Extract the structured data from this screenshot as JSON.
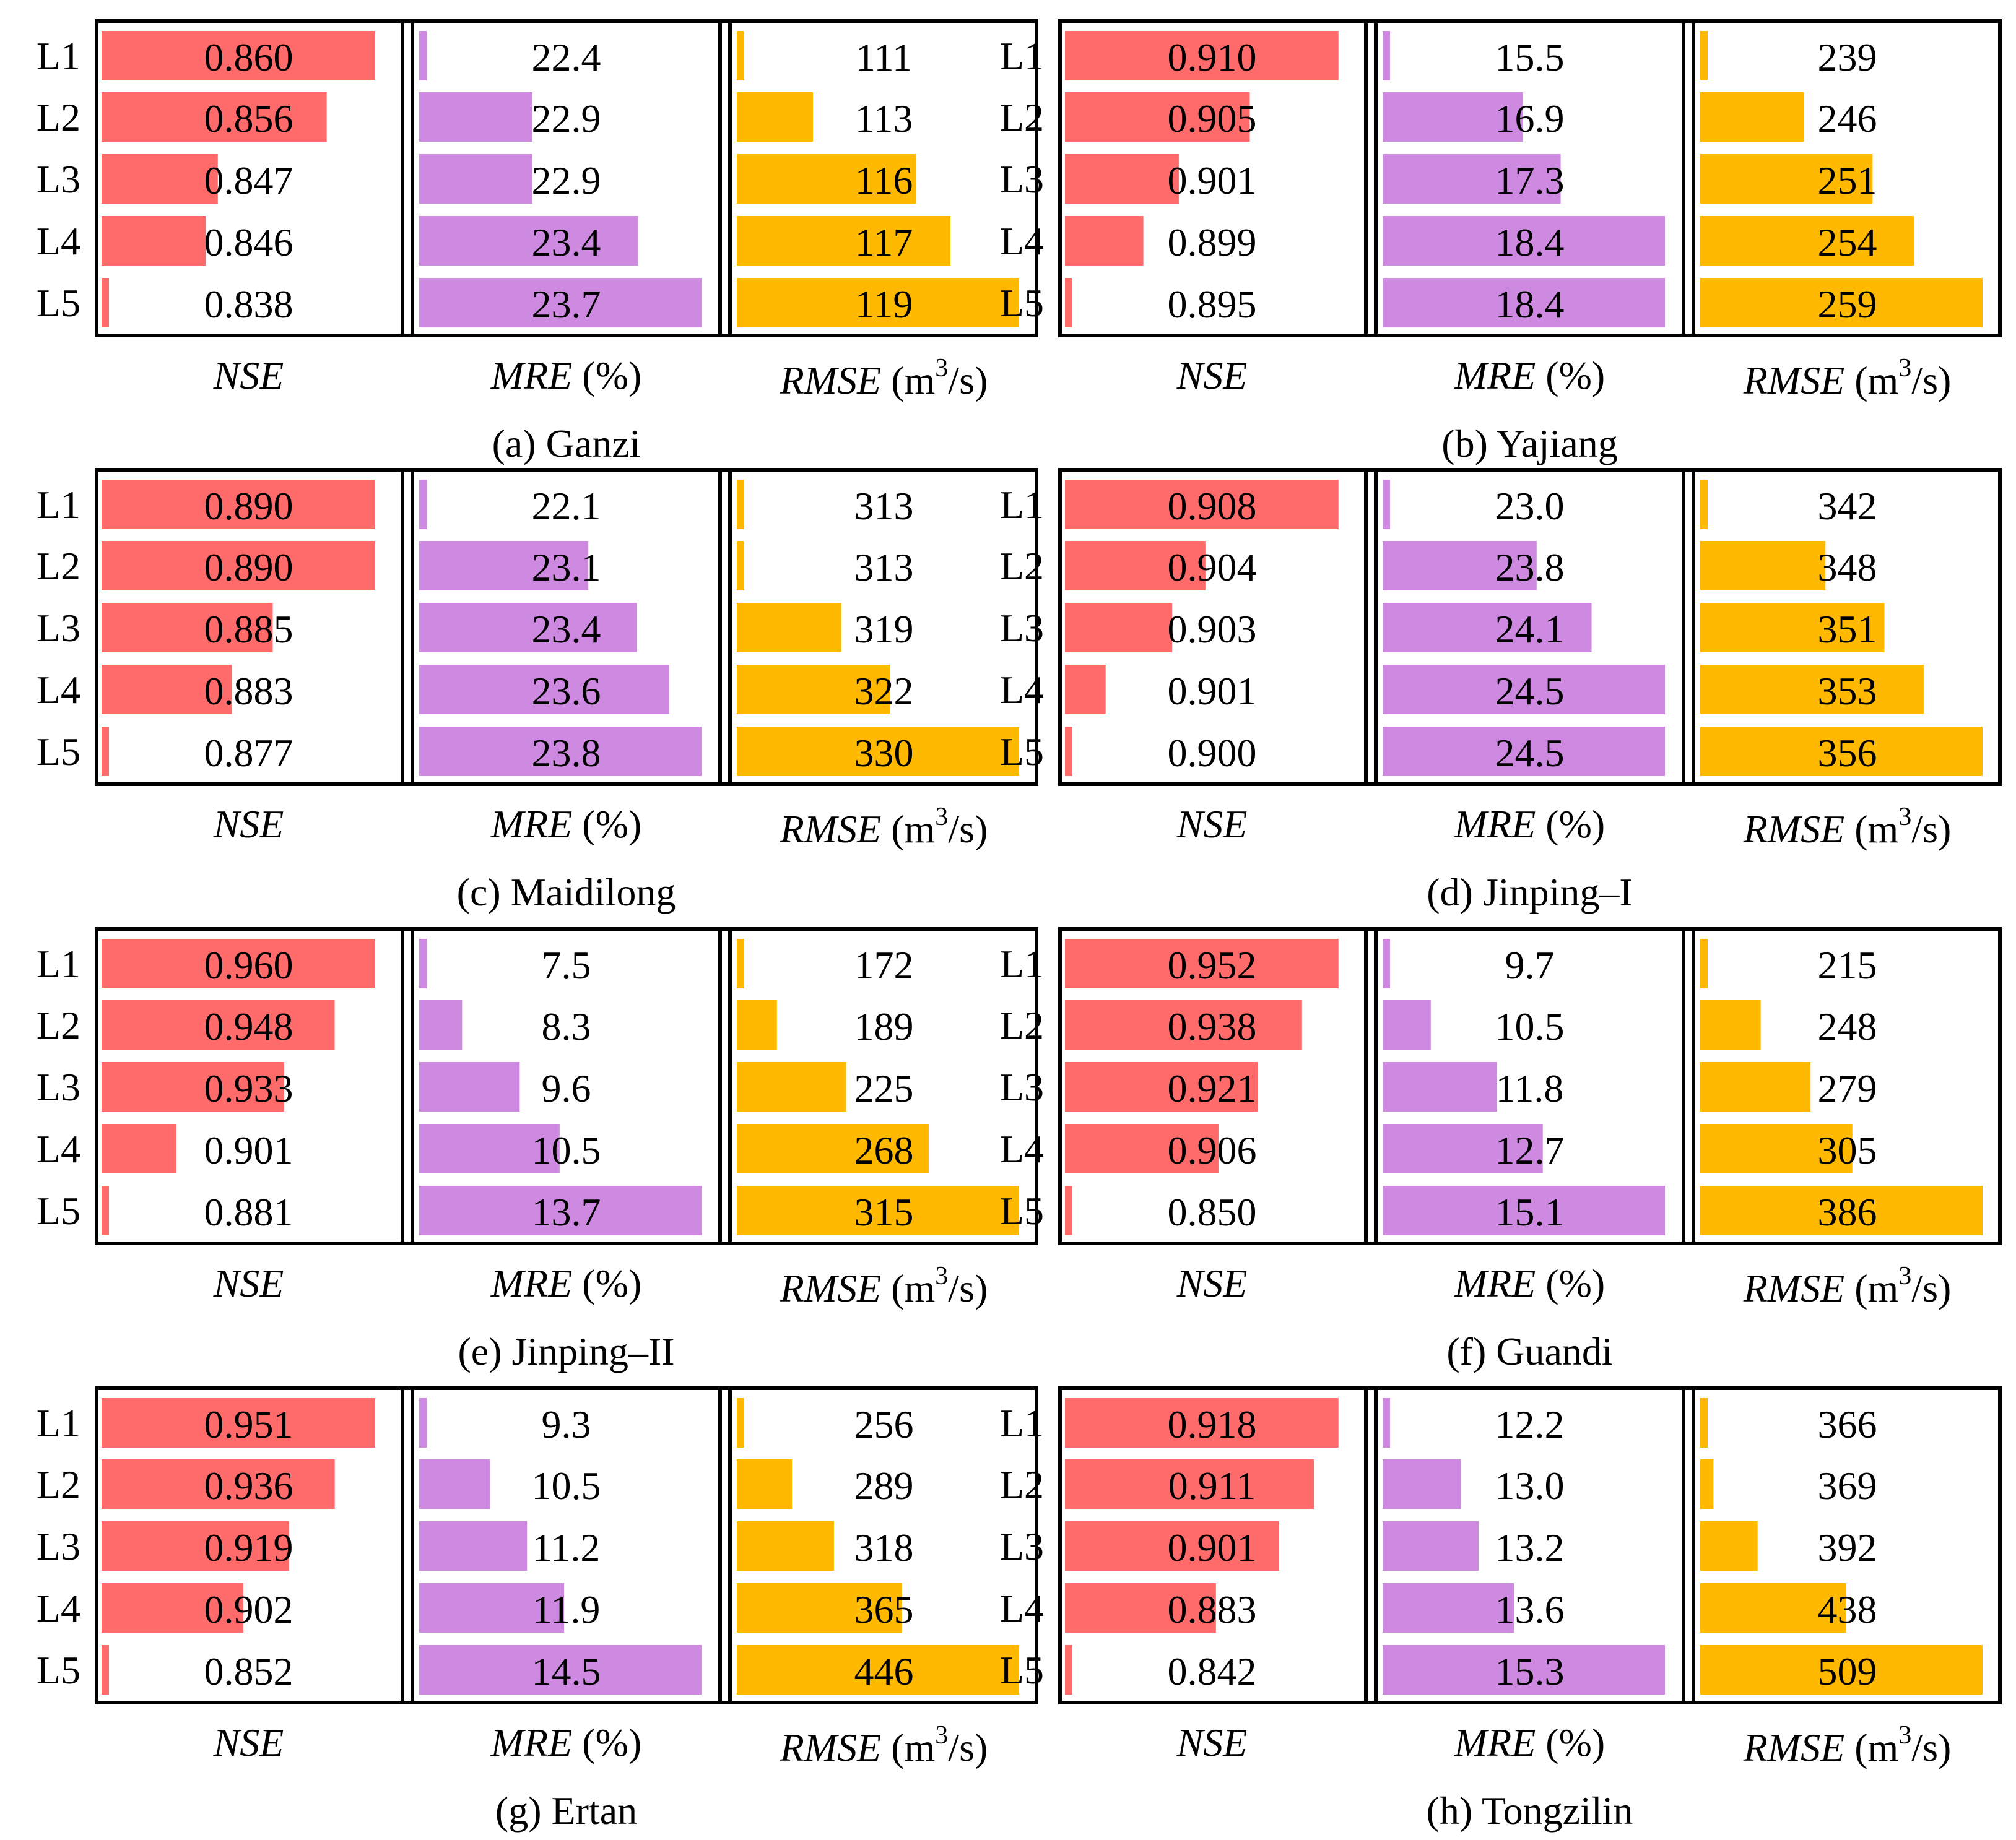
{
  "colors": {
    "nse": "#ff6b6b",
    "mre": "#cd8ae0",
    "rmse": "#ffb900",
    "frame": "#000000"
  },
  "row_labels": [
    "L1",
    "L2",
    "L3",
    "L4",
    "L5"
  ],
  "metric_labels": {
    "nse": "NSE",
    "mre": {
      "name": "MRE",
      "unit": "(%)"
    },
    "rmse": {
      "name": "RMSE",
      "unit_prefix": "(m",
      "unit_sup": "3",
      "unit_suffix": "/s)"
    }
  },
  "chart_data": [
    {
      "type": "bar",
      "orientation": "horizontal",
      "caption": "(a) Ganzi",
      "categories": [
        "L1",
        "L2",
        "L3",
        "L4",
        "L5"
      ],
      "series": [
        {
          "name": "NSE",
          "key": "nse",
          "labels": [
            "0.860",
            "0.856",
            "0.847",
            "0.846",
            "0.838"
          ],
          "values": [
            0.86,
            0.856,
            0.847,
            0.846,
            0.838
          ]
        },
        {
          "name": "MRE (%)",
          "key": "mre",
          "labels": [
            "22.4",
            "22.9",
            "22.9",
            "23.4",
            "23.7"
          ],
          "values": [
            22.4,
            22.9,
            22.9,
            23.4,
            23.7
          ]
        },
        {
          "name": "RMSE (m3/s)",
          "key": "rmse",
          "labels": [
            "111",
            "113",
            "116",
            "117",
            "119"
          ],
          "values": [
            111,
            113,
            116,
            117,
            119
          ]
        }
      ]
    },
    {
      "type": "bar",
      "orientation": "horizontal",
      "caption": "(b) Yajiang",
      "categories": [
        "L1",
        "L2",
        "L3",
        "L4",
        "L5"
      ],
      "series": [
        {
          "name": "NSE",
          "key": "nse",
          "labels": [
            "0.910",
            "0.905",
            "0.901",
            "0.899",
            "0.895"
          ],
          "values": [
            0.91,
            0.905,
            0.901,
            0.899,
            0.895
          ]
        },
        {
          "name": "MRE (%)",
          "key": "mre",
          "labels": [
            "15.5",
            "16.9",
            "17.3",
            "18.4",
            "18.4"
          ],
          "values": [
            15.5,
            16.9,
            17.3,
            18.4,
            18.4
          ]
        },
        {
          "name": "RMSE (m3/s)",
          "key": "rmse",
          "labels": [
            "239",
            "246",
            "251",
            "254",
            "259"
          ],
          "values": [
            239,
            246,
            251,
            254,
            259
          ]
        }
      ]
    },
    {
      "type": "bar",
      "orientation": "horizontal",
      "caption": "(c) Maidilong",
      "categories": [
        "L1",
        "L2",
        "L3",
        "L4",
        "L5"
      ],
      "series": [
        {
          "name": "NSE",
          "key": "nse",
          "labels": [
            "0.890",
            "0.890",
            "0.885",
            "0.883",
            "0.877"
          ],
          "values": [
            0.89,
            0.89,
            0.885,
            0.883,
            0.877
          ]
        },
        {
          "name": "MRE (%)",
          "key": "mre",
          "labels": [
            "22.1",
            "23.1",
            "23.4",
            "23.6",
            "23.8"
          ],
          "values": [
            22.1,
            23.1,
            23.4,
            23.6,
            23.8
          ]
        },
        {
          "name": "RMSE (m3/s)",
          "key": "rmse",
          "labels": [
            "313",
            "313",
            "319",
            "322",
            "330"
          ],
          "values": [
            313,
            313,
            319,
            322,
            330
          ]
        }
      ]
    },
    {
      "type": "bar",
      "orientation": "horizontal",
      "caption": "(d) Jinping–I",
      "categories": [
        "L1",
        "L2",
        "L3",
        "L4",
        "L5"
      ],
      "series": [
        {
          "name": "NSE",
          "key": "nse",
          "labels": [
            "0.908",
            "0.904",
            "0.903",
            "0.901",
            "0.900"
          ],
          "values": [
            0.908,
            0.904,
            0.903,
            0.901,
            0.9
          ]
        },
        {
          "name": "MRE (%)",
          "key": "mre",
          "labels": [
            "23.0",
            "23.8",
            "24.1",
            "24.5",
            "24.5"
          ],
          "values": [
            23.0,
            23.8,
            24.1,
            24.5,
            24.5
          ]
        },
        {
          "name": "RMSE (m3/s)",
          "key": "rmse",
          "labels": [
            "342",
            "348",
            "351",
            "353",
            "356"
          ],
          "values": [
            342,
            348,
            351,
            353,
            356
          ]
        }
      ]
    },
    {
      "type": "bar",
      "orientation": "horizontal",
      "caption": "(e) Jinping–II",
      "categories": [
        "L1",
        "L2",
        "L3",
        "L4",
        "L5"
      ],
      "series": [
        {
          "name": "NSE",
          "key": "nse",
          "labels": [
            "0.960",
            "0.948",
            "0.933",
            "0.901",
            "0.881"
          ],
          "values": [
            0.96,
            0.948,
            0.933,
            0.901,
            0.881
          ]
        },
        {
          "name": "MRE (%)",
          "key": "mre",
          "labels": [
            "7.5",
            "8.3",
            "9.6",
            "10.5",
            "13.7"
          ],
          "values": [
            7.5,
            8.3,
            9.6,
            10.5,
            13.7
          ]
        },
        {
          "name": "RMSE (m3/s)",
          "key": "rmse",
          "labels": [
            "172",
            "189",
            "225",
            "268",
            "315"
          ],
          "values": [
            172,
            189,
            225,
            268,
            315
          ]
        }
      ]
    },
    {
      "type": "bar",
      "orientation": "horizontal",
      "caption": "(f) Guandi",
      "categories": [
        "L1",
        "L2",
        "L3",
        "L4",
        "L5"
      ],
      "series": [
        {
          "name": "NSE",
          "key": "nse",
          "labels": [
            "0.952",
            "0.938",
            "0.921",
            "0.906",
            "0.850"
          ],
          "values": [
            0.952,
            0.938,
            0.921,
            0.906,
            0.85
          ]
        },
        {
          "name": "MRE (%)",
          "key": "mre",
          "labels": [
            "9.7",
            "10.5",
            "11.8",
            "12.7",
            "15.1"
          ],
          "values": [
            9.7,
            10.5,
            11.8,
            12.7,
            15.1
          ]
        },
        {
          "name": "RMSE (m3/s)",
          "key": "rmse",
          "labels": [
            "215",
            "248",
            "279",
            "305",
            "386"
          ],
          "values": [
            215,
            248,
            279,
            305,
            386
          ]
        }
      ]
    },
    {
      "type": "bar",
      "orientation": "horizontal",
      "caption": "(g) Ertan",
      "categories": [
        "L1",
        "L2",
        "L3",
        "L4",
        "L5"
      ],
      "series": [
        {
          "name": "NSE",
          "key": "nse",
          "labels": [
            "0.951",
            "0.936",
            "0.919",
            "0.902",
            "0.852"
          ],
          "values": [
            0.951,
            0.936,
            0.919,
            0.902,
            0.852
          ]
        },
        {
          "name": "MRE (%)",
          "key": "mre",
          "labels": [
            "9.3",
            "10.5",
            "11.2",
            "11.9",
            "14.5"
          ],
          "values": [
            9.3,
            10.5,
            11.2,
            11.9,
            14.5
          ]
        },
        {
          "name": "RMSE (m3/s)",
          "key": "rmse",
          "labels": [
            "256",
            "289",
            "318",
            "365",
            "446"
          ],
          "values": [
            256,
            289,
            318,
            365,
            446
          ]
        }
      ]
    },
    {
      "type": "bar",
      "orientation": "horizontal",
      "caption": "(h) Tongzilin",
      "categories": [
        "L1",
        "L2",
        "L3",
        "L4",
        "L5"
      ],
      "series": [
        {
          "name": "NSE",
          "key": "nse",
          "labels": [
            "0.918",
            "0.911",
            "0.901",
            "0.883",
            "0.842"
          ],
          "values": [
            0.918,
            0.911,
            0.901,
            0.883,
            0.842
          ]
        },
        {
          "name": "MRE (%)",
          "key": "mre",
          "labels": [
            "12.2",
            "13.0",
            "13.2",
            "13.6",
            "15.3"
          ],
          "values": [
            12.2,
            13.0,
            13.2,
            13.6,
            15.3
          ]
        },
        {
          "name": "RMSE (m3/s)",
          "key": "rmse",
          "labels": [
            "366",
            "369",
            "392",
            "438",
            "509"
          ],
          "values": [
            366,
            369,
            392,
            438,
            509
          ]
        }
      ]
    }
  ]
}
